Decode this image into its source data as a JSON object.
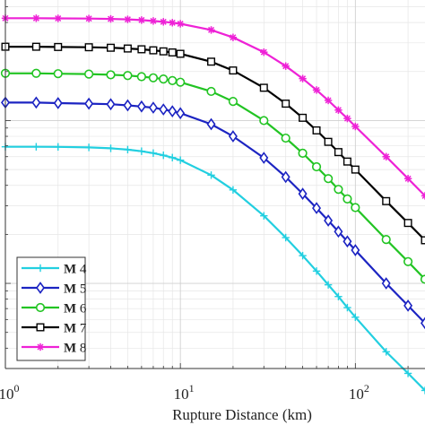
{
  "chart_data": {
    "type": "line",
    "xlabel": "Rupture Distance (km)",
    "ylabel": "",
    "title": "",
    "x_scale": "log",
    "y_scale": "log",
    "xlim": [
      1,
      250
    ],
    "ylim": [
      0.003,
      0.55
    ],
    "grid": true,
    "legend_position": "bottom-left",
    "x_tick_labels": [
      {
        "value": 1,
        "base": "10",
        "exp": "0"
      },
      {
        "value": 10,
        "base": "10",
        "exp": "1"
      },
      {
        "value": 100,
        "base": "10",
        "exp": "2"
      }
    ],
    "x": [
      1,
      1.5,
      2,
      3,
      4,
      5,
      6,
      7,
      8,
      9,
      10,
      15,
      20,
      30,
      40,
      50,
      60,
      70,
      80,
      90,
      100,
      150,
      200,
      250
    ],
    "series": [
      {
        "name": "M 4",
        "label_bold": "M",
        "label_rest": " 4",
        "color": "#22cfe0",
        "marker": "plus",
        "values": [
          0.069,
          0.069,
          0.0689,
          0.0684,
          0.0675,
          0.0663,
          0.0648,
          0.0631,
          0.0612,
          0.0592,
          0.0571,
          0.0462,
          0.0375,
          0.026,
          0.0191,
          0.0148,
          0.0119,
          0.0098,
          0.0083,
          0.0071,
          0.0062,
          0.0038,
          0.0028,
          0.0022
        ]
      },
      {
        "name": "M 5",
        "label_bold": "M",
        "label_rest": " 5",
        "color": "#1c24c2",
        "marker": "diamond",
        "values": [
          0.129,
          0.129,
          0.128,
          0.127,
          0.126,
          0.124,
          0.122,
          0.12,
          0.117,
          0.114,
          0.111,
          0.095,
          0.08,
          0.059,
          0.045,
          0.0355,
          0.029,
          0.0243,
          0.0208,
          0.0181,
          0.016,
          0.01,
          0.0073,
          0.0057
        ]
      },
      {
        "name": "M 6",
        "label_bold": "M",
        "label_rest": " 6",
        "color": "#22c423",
        "marker": "circle",
        "values": [
          0.195,
          0.195,
          0.194,
          0.193,
          0.191,
          0.189,
          0.186,
          0.183,
          0.18,
          0.176,
          0.172,
          0.151,
          0.131,
          0.1,
          0.078,
          0.063,
          0.052,
          0.044,
          0.0378,
          0.033,
          0.0292,
          0.0186,
          0.0136,
          0.0106
        ]
      },
      {
        "name": "M 7",
        "label_bold": "M",
        "label_rest": " 7",
        "color": "#000000",
        "marker": "square",
        "values": [
          0.284,
          0.284,
          0.283,
          0.282,
          0.28,
          0.277,
          0.274,
          0.27,
          0.266,
          0.262,
          0.257,
          0.23,
          0.203,
          0.159,
          0.127,
          0.104,
          0.087,
          0.074,
          0.064,
          0.056,
          0.05,
          0.032,
          0.0235,
          0.0184
        ]
      },
      {
        "name": "M 8",
        "label_bold": "M",
        "label_rest": " 8",
        "color": "#ee22d6",
        "marker": "asterisk",
        "values": [
          0.425,
          0.425,
          0.424,
          0.423,
          0.421,
          0.418,
          0.414,
          0.409,
          0.404,
          0.399,
          0.393,
          0.36,
          0.324,
          0.263,
          0.216,
          0.181,
          0.154,
          0.133,
          0.116,
          0.103,
          0.092,
          0.06,
          0.044,
          0.0345
        ]
      }
    ]
  }
}
